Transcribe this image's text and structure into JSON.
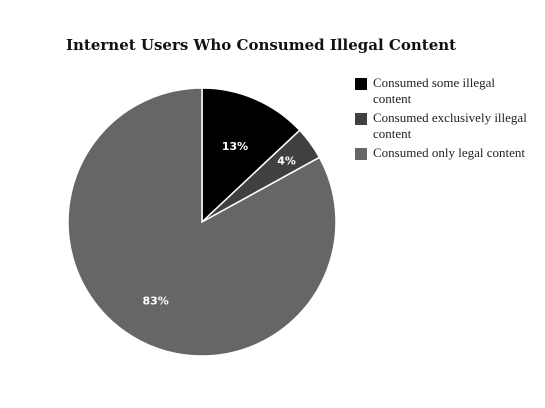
{
  "chart_data": {
    "type": "pie",
    "title": "Internet Users Who Consumed Illegal Content",
    "slices": [
      {
        "name": "Consumed some illegal content",
        "value": 13,
        "label": "13%",
        "color": "#000000"
      },
      {
        "name": "Consumed exclusively illegal content",
        "value": 4,
        "label": "4%",
        "color": "#404040"
      },
      {
        "name": "Consumed only legal content",
        "value": 83,
        "label": "83%",
        "color": "#666666"
      }
    ],
    "legend_position": "right",
    "start_angle": "12 o'clock",
    "direction": "clockwise"
  }
}
